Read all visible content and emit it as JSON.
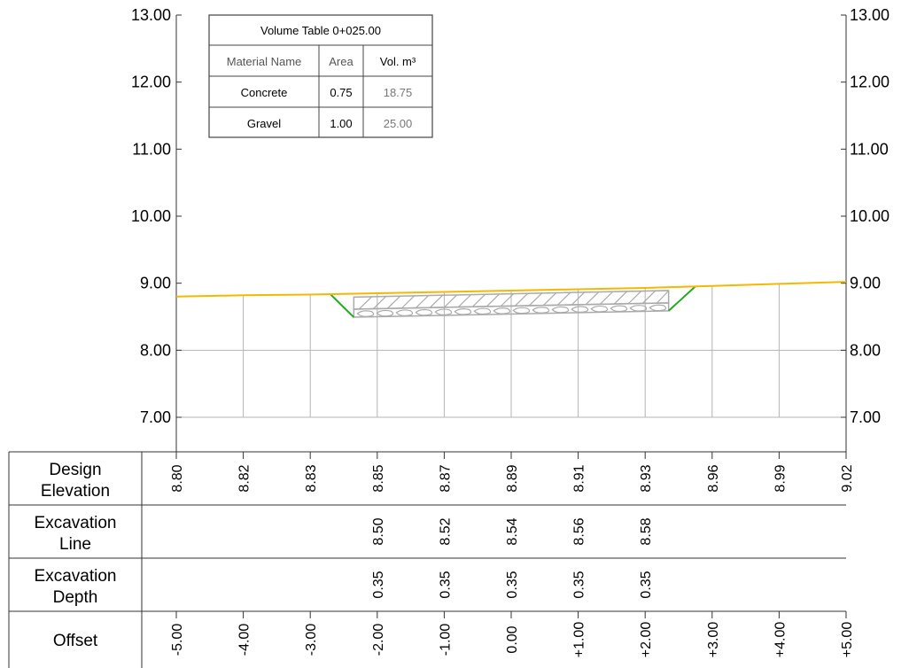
{
  "elevation_axis": {
    "labels": [
      "13.00",
      "12.00",
      "11.00",
      "10.00",
      "9.00",
      "8.00",
      "7.00"
    ]
  },
  "volume_table": {
    "title": "Volume Table 0+025.00",
    "headers": [
      "Material Name",
      "Area",
      "Vol. m³"
    ],
    "rows": [
      {
        "material": "Concrete",
        "area": "0.75",
        "volume": "18.75"
      },
      {
        "material": "Gravel",
        "area": "1.00",
        "volume": "25.00"
      }
    ]
  },
  "bands": [
    {
      "title_line1": "Design",
      "title_line2": "Elevation",
      "values": [
        "8.80",
        "8.82",
        "8.83",
        "8.85",
        "8.87",
        "8.89",
        "8.91",
        "8.93",
        "8.96",
        "8.99",
        "9.02"
      ]
    },
    {
      "title_line1": "Excavation",
      "title_line2": "Line",
      "values": [
        "",
        "",
        "",
        "8.50",
        "8.52",
        "8.54",
        "8.56",
        "8.58",
        "",
        "",
        ""
      ]
    },
    {
      "title_line1": "Excavation",
      "title_line2": "Depth",
      "values": [
        "",
        "",
        "",
        "0.35",
        "0.35",
        "0.35",
        "0.35",
        "0.35",
        "",
        "",
        ""
      ]
    },
    {
      "title_line1": "Offset",
      "title_line2": "",
      "values": [
        "-5.00",
        "-4.00",
        "-3.00",
        "-2.00",
        "-1.00",
        "0.00",
        "+1.00",
        "+2.00",
        "+3.00",
        "+4.00",
        "+5.00"
      ]
    }
  ],
  "chart_data": {
    "type": "line",
    "offsets": [
      -5,
      -4,
      -3,
      -2,
      -1,
      0,
      1,
      2,
      3,
      4,
      5
    ],
    "design_elevation": [
      8.8,
      8.82,
      8.83,
      8.85,
      8.87,
      8.89,
      8.91,
      8.93,
      8.96,
      8.99,
      9.02
    ],
    "excavation_line": {
      "offsets": [
        -2,
        -1,
        0,
        1,
        2
      ],
      "elevations": [
        8.5,
        8.52,
        8.54,
        8.56,
        8.58
      ]
    },
    "excavation_depth": {
      "offsets": [
        -2,
        -1,
        0,
        1,
        2
      ],
      "depths": [
        0.35,
        0.35,
        0.35,
        0.35,
        0.35
      ]
    },
    "ylim": [
      7.0,
      13.0
    ],
    "grid": true,
    "colors": {
      "design": "#f5b800",
      "excavation_slope": "#22aa22",
      "grid": "#b4b4b4",
      "material": "#aaaaaa"
    }
  }
}
